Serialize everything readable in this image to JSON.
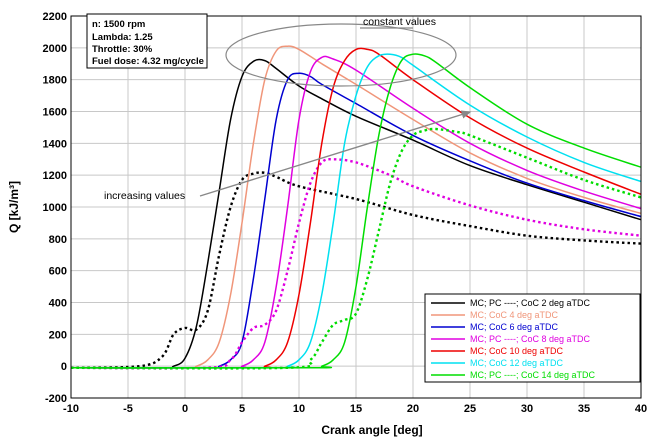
{
  "chart_data": {
    "type": "line",
    "title": "",
    "xlabel": "Crank angle [deg]",
    "ylabel": "Q [kJ/m³]",
    "xlim": [
      -10,
      40
    ],
    "ylim": [
      -200,
      2200
    ],
    "x_ticks": [
      "-10",
      "-5",
      "0",
      "5",
      "10",
      "15",
      "20",
      "25",
      "30",
      "35",
      "40"
    ],
    "y_ticks": [
      "-200",
      "0",
      "200",
      "400",
      "600",
      "800",
      "1000",
      "1200",
      "1400",
      "1600",
      "1800",
      "2000",
      "2200"
    ],
    "grid": true,
    "info_box": [
      "n: 1500 rpm",
      "Lambda: 1.25",
      "Throttle: 30%",
      "Fuel dose:  4.32 mg/cycle"
    ],
    "annotations": {
      "constant": "constant values",
      "increasing": "increasing values"
    },
    "legend_position": "bottom-right",
    "series": [
      {
        "name": "MC; PC ----; CoC 2 deg aTDC",
        "legend_label": "MC; PC ----; CoC 2 deg aTDC",
        "color": "#000000",
        "style": "solid",
        "x": [
          -10,
          -2,
          -1,
          0,
          1,
          2,
          3,
          4,
          5,
          6,
          7,
          8,
          10,
          12,
          15,
          20,
          25,
          30,
          35,
          40
        ],
        "y": [
          -10,
          -10,
          0,
          50,
          250,
          650,
          1100,
          1550,
          1820,
          1915,
          1920,
          1870,
          1760,
          1680,
          1570,
          1420,
          1260,
          1140,
          1030,
          920
        ]
      },
      {
        "name": "MC; PC ----; CoC 2 deg aTDC (PC)",
        "color": "#000000",
        "style": "dotted",
        "x": [
          -10,
          -4,
          -2,
          -1,
          0,
          1,
          2,
          3,
          4,
          5,
          6,
          7,
          8,
          10,
          15,
          20,
          25,
          30,
          35,
          40
        ],
        "y": [
          -10,
          0,
          60,
          200,
          240,
          230,
          350,
          700,
          1000,
          1170,
          1210,
          1215,
          1190,
          1130,
          1050,
          950,
          880,
          820,
          790,
          770
        ]
      },
      {
        "name": "MC; CoC 4 deg aTDC",
        "legend_label": "MC; CoC 4 deg aTDC",
        "color": "#f0967a",
        "style": "solid",
        "x": [
          -10,
          0,
          1,
          2,
          3,
          4,
          5,
          6,
          7,
          8,
          9,
          10,
          12,
          15,
          20,
          25,
          30,
          35,
          40
        ],
        "y": [
          -10,
          -10,
          0,
          40,
          150,
          450,
          900,
          1400,
          1800,
          1980,
          2010,
          1990,
          1900,
          1770,
          1550,
          1340,
          1180,
          1060,
          960
        ]
      },
      {
        "name": "MC; CoC 6 deg aTDC",
        "legend_label": "MC; CoC 6 deg aTDC",
        "color": "#0000d0",
        "style": "solid",
        "x": [
          -10,
          2,
          3,
          4,
          5,
          6,
          7,
          8,
          9,
          10,
          11,
          12,
          15,
          20,
          25,
          30,
          35,
          40
        ],
        "y": [
          -10,
          -10,
          0,
          40,
          150,
          550,
          1050,
          1550,
          1800,
          1840,
          1820,
          1770,
          1650,
          1450,
          1290,
          1150,
          1040,
          940
        ]
      },
      {
        "name": "MC; PC ----; CoC 8 deg aTDC",
        "legend_label": "MC; PC ----; CoC 8 deg aTDC",
        "color": "#e000e0",
        "style": "solid",
        "x": [
          -10,
          4,
          5,
          6,
          7,
          8,
          9,
          10,
          11,
          12,
          13,
          15,
          20,
          25,
          30,
          35,
          40
        ],
        "y": [
          -10,
          -10,
          0,
          40,
          150,
          500,
          1000,
          1550,
          1850,
          1940,
          1930,
          1860,
          1620,
          1400,
          1230,
          1100,
          990
        ]
      },
      {
        "name": "MC; PC ----; CoC 8 deg aTDC (PC)",
        "color": "#e000e0",
        "style": "dotted",
        "x": [
          -10,
          2,
          4,
          5,
          6,
          7,
          8,
          9,
          10,
          11,
          12,
          13,
          15,
          18,
          20,
          25,
          30,
          35,
          40
        ],
        "y": [
          -10,
          -10,
          40,
          150,
          240,
          260,
          350,
          600,
          900,
          1150,
          1280,
          1300,
          1280,
          1200,
          1130,
          1010,
          920,
          860,
          820
        ]
      },
      {
        "name": "MC; CoC 10 deg aTDC",
        "legend_label": "MC; CoC 10 deg aTDC",
        "color": "#ee0000",
        "style": "solid",
        "x": [
          -10,
          6,
          7,
          8,
          9,
          10,
          11,
          12,
          13,
          14,
          15,
          16,
          17,
          20,
          25,
          30,
          35,
          40
        ],
        "y": [
          -10,
          -10,
          0,
          40,
          150,
          450,
          900,
          1400,
          1750,
          1920,
          1990,
          1990,
          1960,
          1800,
          1560,
          1370,
          1220,
          1080
        ]
      },
      {
        "name": "MC; CoC 12 deg aTDC",
        "legend_label": "MC; CoC 12 deg aTDC",
        "color": "#00e0f0",
        "style": "solid",
        "x": [
          -10,
          8,
          9,
          10,
          11,
          12,
          13,
          14,
          15,
          16,
          17,
          18,
          19,
          20,
          25,
          30,
          35,
          40
        ],
        "y": [
          -10,
          -10,
          0,
          40,
          150,
          450,
          900,
          1400,
          1700,
          1880,
          1950,
          1960,
          1940,
          1890,
          1640,
          1440,
          1280,
          1160
        ]
      },
      {
        "name": "MC; PC ----; CoC 14 deg aTDC",
        "legend_label": "MC; PC ----; CoC 14 deg aTDC",
        "color": "#00dd00",
        "style": "solid",
        "x": [
          -10,
          11,
          12,
          13,
          14,
          15,
          16,
          17,
          18,
          19,
          20,
          21,
          22,
          25,
          30,
          35,
          40
        ],
        "y": [
          -10,
          -10,
          0,
          40,
          150,
          500,
          1000,
          1450,
          1750,
          1920,
          1960,
          1950,
          1910,
          1750,
          1520,
          1370,
          1250
        ]
      },
      {
        "name": "MC; PC ----; CoC 14 deg aTDC (PC)",
        "color": "#00dd00",
        "style": "dotted",
        "x": [
          -10,
          9,
          11,
          12,
          13,
          14,
          15,
          16,
          17,
          18,
          19,
          20,
          21,
          22,
          24,
          25,
          30,
          35,
          40
        ],
        "y": [
          -10,
          -10,
          40,
          150,
          260,
          290,
          330,
          550,
          850,
          1150,
          1350,
          1450,
          1480,
          1490,
          1470,
          1450,
          1310,
          1170,
          1060
        ]
      }
    ]
  }
}
